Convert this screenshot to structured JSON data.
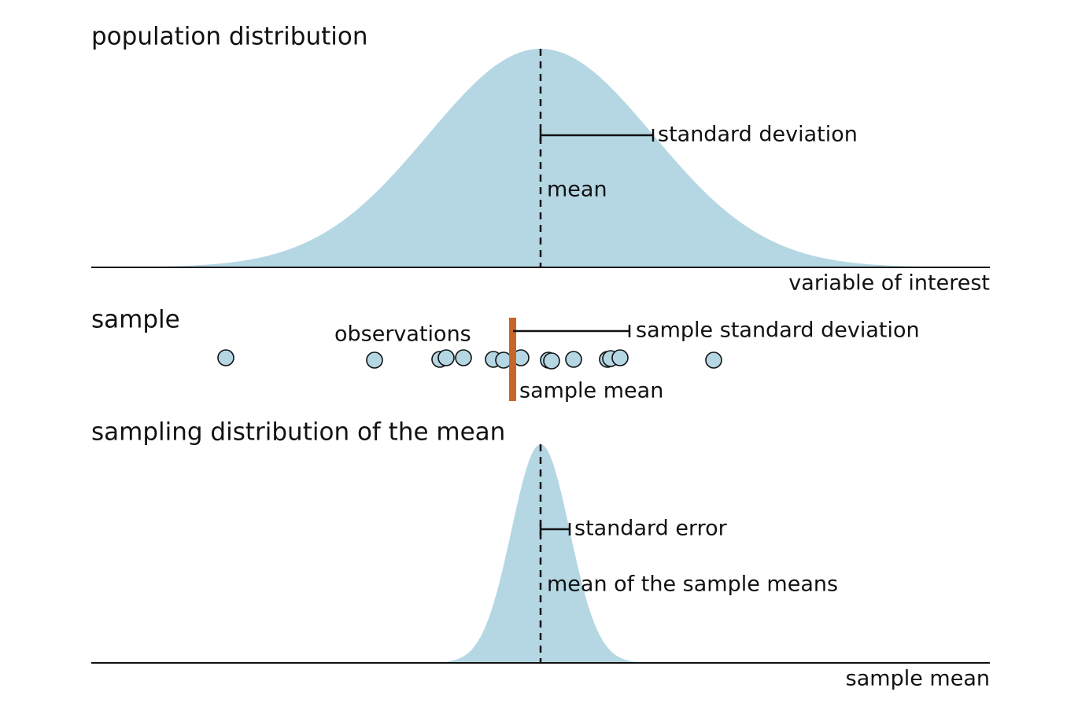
{
  "population": {
    "title": "population distribution",
    "sd_label": "standard deviation",
    "mean_label": "mean",
    "axis_label": "variable of interest"
  },
  "sample": {
    "title": "sample",
    "observations_label": "observations",
    "sd_label": "sample standard deviation",
    "mean_label": "sample mean"
  },
  "sampling": {
    "title": "sampling distribution of the mean",
    "se_label": "standard error",
    "mean_label": "mean of the sample means",
    "axis_label": "sample mean"
  }
}
